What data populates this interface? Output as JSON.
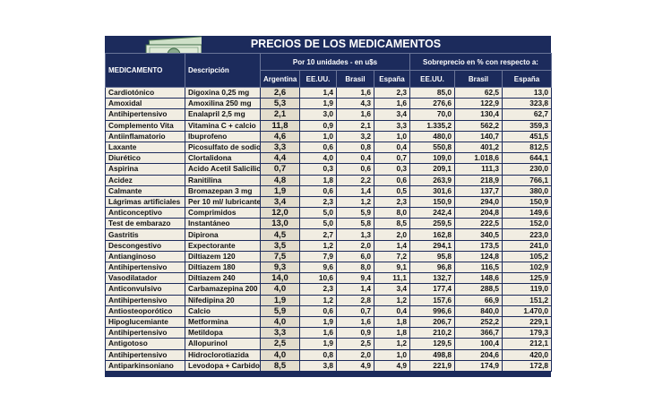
{
  "header": {
    "title": "PRECIOS DE LOS MEDICAMENTOS"
  },
  "table": {
    "group_headers": [
      "Por 10 unidades - en u$s",
      "Sobreprecio en % con respecto a:"
    ],
    "columns": [
      "MEDICAMENTO",
      "Descripción",
      "Argentina",
      "EE.UU.",
      "Brasil",
      "España",
      "EE.UU.",
      "Brasil",
      "España"
    ],
    "rows": [
      [
        "Cardiotónico",
        "Digoxina 0,25 mg",
        "2,6",
        "1,4",
        "1,6",
        "2,3",
        "85,0",
        "62,5",
        "13,0"
      ],
      [
        "Amoxidal",
        "Amoxilina 250 mg",
        "5,3",
        "1,9",
        "4,3",
        "1,6",
        "276,6",
        "122,9",
        "323,8"
      ],
      [
        "Antihipertensivo",
        "Enalapril 2,5 mg",
        "2,1",
        "3,0",
        "1,6",
        "3,4",
        "70,0",
        "130,4",
        "62,7"
      ],
      [
        "Complemento Vita",
        "Vitamina C + calcio",
        "11,8",
        "0,9",
        "2,1",
        "3,3",
        "1.335,2",
        "562,2",
        "359,3"
      ],
      [
        "Antiinflamatorio",
        "Ibuprofeno",
        "4,6",
        "1,0",
        "3,2",
        "1,0",
        "480,0",
        "140,7",
        "451,5"
      ],
      [
        "Laxante",
        "Picosulfato de sodio",
        "3,3",
        "0,6",
        "0,8",
        "0,4",
        "550,8",
        "401,2",
        "812,5"
      ],
      [
        "Diurético",
        "Clortalidona",
        "4,4",
        "4,0",
        "0,4",
        "0,7",
        "109,0",
        "1.018,6",
        "644,1"
      ],
      [
        "Aspirina",
        "Acido Acetil Salicilico",
        "0,7",
        "0,3",
        "0,6",
        "0,3",
        "209,1",
        "111,3",
        "230,0"
      ],
      [
        "Acidez",
        "Ranitilina",
        "4,8",
        "1,8",
        "2,2",
        "0,6",
        "263,9",
        "218,9",
        "766,1"
      ],
      [
        "Calmante",
        "Bromazepan 3 mg",
        "1,9",
        "0,6",
        "1,4",
        "0,5",
        "301,6",
        "137,7",
        "380,0"
      ],
      [
        "Lágrimas artificiales",
        "Per 10 ml/ lubricante",
        "3,4",
        "2,3",
        "1,2",
        "2,3",
        "150,9",
        "294,0",
        "150,9"
      ],
      [
        "Anticonceptivo",
        "Comprimidos",
        "12,0",
        "5,0",
        "5,9",
        "8,0",
        "242,4",
        "204,8",
        "149,6"
      ],
      [
        "Test de embarazo",
        "Instantáneo",
        "13,0",
        "5,0",
        "5,8",
        "8,5",
        "259,5",
        "222,5",
        "152,0"
      ],
      [
        "Gastritis",
        "Dipirona",
        "4,5",
        "2,7",
        "1,3",
        "2,0",
        "162,8",
        "340,5",
        "223,0"
      ],
      [
        "Descongestivo",
        "Expectorante",
        "3,5",
        "1,2",
        "2,0",
        "1,4",
        "294,1",
        "173,5",
        "241,0"
      ],
      [
        "Antianginoso",
        "Diltiazem 120",
        "7,5",
        "7,9",
        "6,0",
        "7,2",
        "95,8",
        "124,8",
        "105,2"
      ],
      [
        "Antihipertensivo",
        "Diltiazem 180",
        "9,3",
        "9,6",
        "8,0",
        "9,1",
        "96,8",
        "116,5",
        "102,9"
      ],
      [
        "Vasodilatador",
        "Diltiazem 240",
        "14,0",
        "10,6",
        "9,4",
        "11,1",
        "132,7",
        "148,6",
        "125,9"
      ],
      [
        "Anticonvulsivo",
        "Carbamazepina 200",
        "4,0",
        "2,3",
        "1,4",
        "3,4",
        "177,4",
        "288,5",
        "119,0"
      ],
      [
        "Antihipertensivo",
        "Nifedipina 20",
        "1,9",
        "1,2",
        "2,8",
        "1,2",
        "157,6",
        "66,9",
        "151,2"
      ],
      [
        "Antiosteoporótico",
        "Calcio",
        "5,9",
        "0,6",
        "0,7",
        "0,4",
        "996,6",
        "840,0",
        "1.470,0"
      ],
      [
        "Hipoglucemiante",
        "Metformina",
        "4,0",
        "1,9",
        "1,6",
        "1,8",
        "206,7",
        "252,2",
        "229,1"
      ],
      [
        "Antihipertensivo",
        "Metildopa",
        "3,3",
        "1,6",
        "0,9",
        "1,8",
        "210,2",
        "366,7",
        "179,3"
      ],
      [
        "Antigotoso",
        "Allopurinol",
        "2,5",
        "1,9",
        "2,5",
        "1,2",
        "129,5",
        "100,4",
        "212,1"
      ],
      [
        "Antihipertensivo",
        "Hidroclorotiazida",
        "4,0",
        "0,8",
        "2,0",
        "1,0",
        "498,8",
        "204,6",
        "420,0"
      ],
      [
        "Antiparkinsoniano",
        "Levodopa + Carbidopa",
        "8,5",
        "3,8",
        "4,9",
        "4,9",
        "221,9",
        "174,9",
        "172,8"
      ]
    ]
  }
}
